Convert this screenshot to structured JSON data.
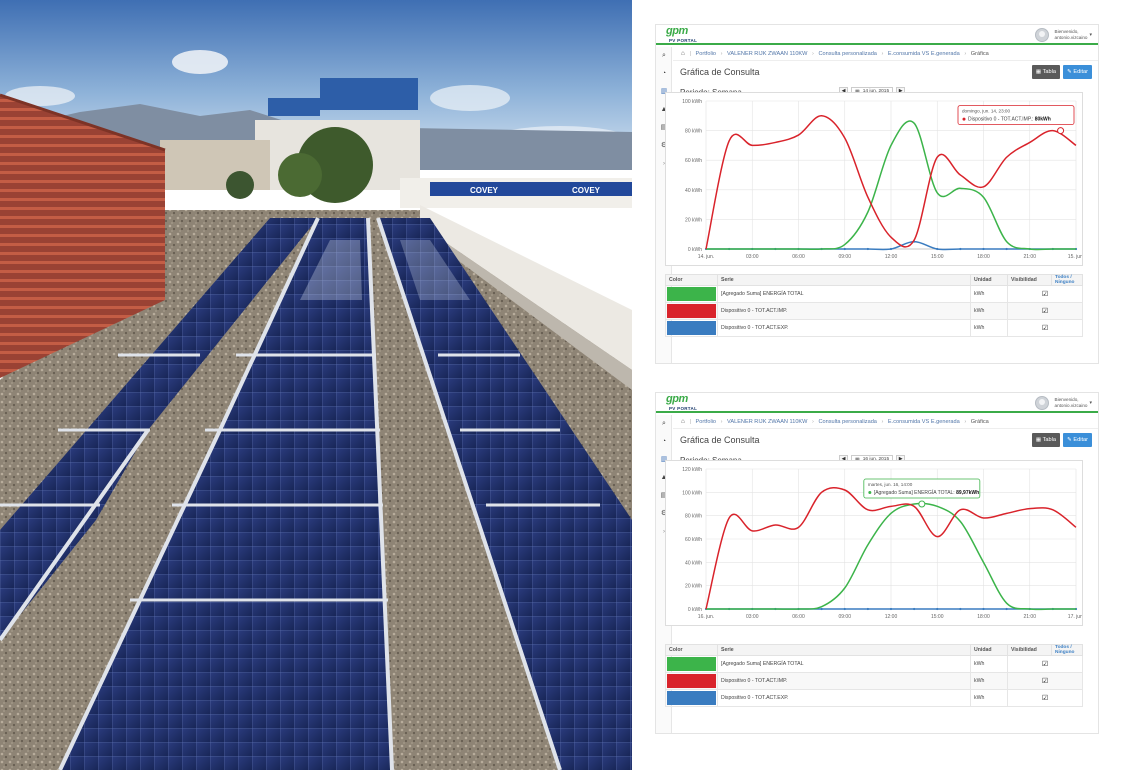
{
  "photo": {
    "banner_label": "COVEY"
  },
  "panels": [
    {
      "logo": {
        "brand": "gpm",
        "product": "PV PORTAL"
      },
      "user": {
        "greeting": "Bienvenido,",
        "name": "antonio.vizcaino"
      },
      "sidebar_icons": [
        "search-icon",
        "dashboard-icon",
        "chart-icon",
        "bell-icon",
        "document-icon",
        "settings-icon",
        "expand-icon"
      ],
      "breadcrumb": [
        "Portfolio",
        "VALENER RIJK ZWAAN 110KW",
        "Consulta personalizada",
        "E.consumida VS E.generada",
        "Gráfica"
      ],
      "page_title": "Gráfica de Consulta",
      "buttons": {
        "table": "Tabla",
        "edit": "Editar"
      },
      "period_label": "Periodo: Semana",
      "date": "14 jun. 2015",
      "table": {
        "headers": {
          "color": "Color",
          "series": "Serie",
          "unit": "Unidad",
          "visibility": "Visibilidad",
          "toggle_all": "Todos / Ninguno"
        },
        "rows": [
          {
            "color": "#3cb44a",
            "series": "[Agregado Suma] ENERGÍA TOTAL",
            "unit": "kWh"
          },
          {
            "color": "#d9232b",
            "series": "Dispositivo 0 - TOT.ACT.IMP.",
            "unit": "kWh"
          },
          {
            "color": "#3a7cc0",
            "series": "Dispositivo 0 - TOT.ACT.EXP.",
            "unit": "kWh"
          }
        ]
      },
      "tooltip": {
        "time": "domingo, jun. 14, 23:00",
        "series": "Dispositivo 0 - TOT.ACT.IMP.:",
        "value": "80kWh"
      }
    },
    {
      "logo": {
        "brand": "gpm",
        "product": "PV PORTAL"
      },
      "user": {
        "greeting": "Bienvenido,",
        "name": "antonio.vizcaino"
      },
      "sidebar_icons": [
        "search-icon",
        "dashboard-icon",
        "chart-icon",
        "bell-icon",
        "document-icon",
        "settings-icon",
        "expand-icon"
      ],
      "breadcrumb": [
        "Portfolio",
        "VALENER RIJK ZWAAN 110KW",
        "Consulta personalizada",
        "E.consumida VS E.generada",
        "Gráfica"
      ],
      "page_title": "Gráfica de Consulta",
      "buttons": {
        "table": "Tabla",
        "edit": "Editar"
      },
      "period_label": "Periodo: Semana",
      "date": "16 jun. 2015",
      "table": {
        "headers": {
          "color": "Color",
          "series": "Serie",
          "unit": "Unidad",
          "visibility": "Visibilidad",
          "toggle_all": "Todos / Ninguno"
        },
        "rows": [
          {
            "color": "#3cb44a",
            "series": "[Agregado Suma] ENERGÍA TOTAL",
            "unit": "kWh"
          },
          {
            "color": "#d9232b",
            "series": "Dispositivo 0 - TOT.ACT.IMP.",
            "unit": "kWh"
          },
          {
            "color": "#3a7cc0",
            "series": "Dispositivo 0 - TOT.ACT.EXP.",
            "unit": "kWh"
          }
        ]
      },
      "tooltip": {
        "time": "martes, jun. 16, 14:00",
        "series": "[Agregado Suma] ENERGÍA TOTAL:",
        "value": "89,97kWh"
      }
    }
  ],
  "chart_data": [
    {
      "type": "line",
      "x": [
        0,
        1.5,
        3,
        4.5,
        6,
        7.5,
        9,
        10.5,
        12,
        13.5,
        15,
        16.5,
        18,
        19.5,
        21,
        22.5,
        24
      ],
      "xticks": [
        "14. jun.",
        "03:00",
        "06:00",
        "09:00",
        "12:00",
        "15:00",
        "18:00",
        "21:00",
        "15. jun."
      ],
      "ylim": [
        0,
        100
      ],
      "yticks": [
        "0 kWh",
        "20 kWh",
        "40 kWh",
        "60 kWh",
        "80 kWh",
        "100 kWh"
      ],
      "grid": true,
      "series": [
        {
          "name": "[Agregado Suma] ENERGÍA TOTAL",
          "color": "#3cb44a",
          "values": [
            0,
            0,
            0,
            0,
            0,
            0,
            3,
            25,
            70,
            85,
            38,
            41,
            35,
            5,
            0,
            0,
            0
          ]
        },
        {
          "name": "Dispositivo 0 - TOT.ACT.IMP.",
          "color": "#d9232b",
          "values": [
            0,
            73,
            70,
            72,
            77,
            90,
            75,
            35,
            8,
            6,
            62,
            50,
            42,
            62,
            72,
            80,
            70
          ]
        },
        {
          "name": "Dispositivo 0 - TOT.ACT.EXP.",
          "color": "#3a7cc0",
          "values": [
            0,
            0,
            0,
            0,
            0,
            0,
            0,
            0,
            0,
            5,
            0,
            0,
            0,
            0,
            0,
            0,
            0
          ]
        }
      ],
      "tooltip_point": {
        "series": 1,
        "x": 23,
        "y": 80
      }
    },
    {
      "type": "line",
      "x": [
        0,
        1.5,
        3,
        4.5,
        6,
        7.5,
        9,
        10.5,
        12,
        13.5,
        15,
        16.5,
        18,
        19.5,
        21,
        22.5,
        24
      ],
      "xticks": [
        "16. jun.",
        "03:00",
        "06:00",
        "09:00",
        "12:00",
        "15:00",
        "18:00",
        "21:00",
        "17. jun."
      ],
      "ylim": [
        0,
        120
      ],
      "yticks": [
        "0 kWh",
        "20 kWh",
        "40 kWh",
        "60 kWh",
        "80 kWh",
        "100 kWh",
        "120 kWh"
      ],
      "grid": true,
      "series": [
        {
          "name": "[Agregado Suma] ENERGÍA TOTAL",
          "color": "#3cb44a",
          "values": [
            0,
            0,
            0,
            0,
            0,
            2,
            18,
            55,
            82,
            90,
            88,
            75,
            40,
            5,
            0,
            0,
            0
          ]
        },
        {
          "name": "Dispositivo 0 - TOT.ACT.IMP.",
          "color": "#d9232b",
          "values": [
            0,
            78,
            67,
            72,
            70,
            100,
            102,
            85,
            88,
            88,
            62,
            85,
            78,
            82,
            86,
            85,
            70
          ]
        },
        {
          "name": "Dispositivo 0 - TOT.ACT.EXP.",
          "color": "#3a7cc0",
          "values": [
            0,
            0,
            0,
            0,
            0,
            0,
            0,
            0,
            0,
            0,
            0,
            0,
            0,
            0,
            0,
            0,
            0
          ]
        }
      ],
      "tooltip_point": {
        "series": 0,
        "x": 14,
        "y": 89.97
      }
    }
  ]
}
